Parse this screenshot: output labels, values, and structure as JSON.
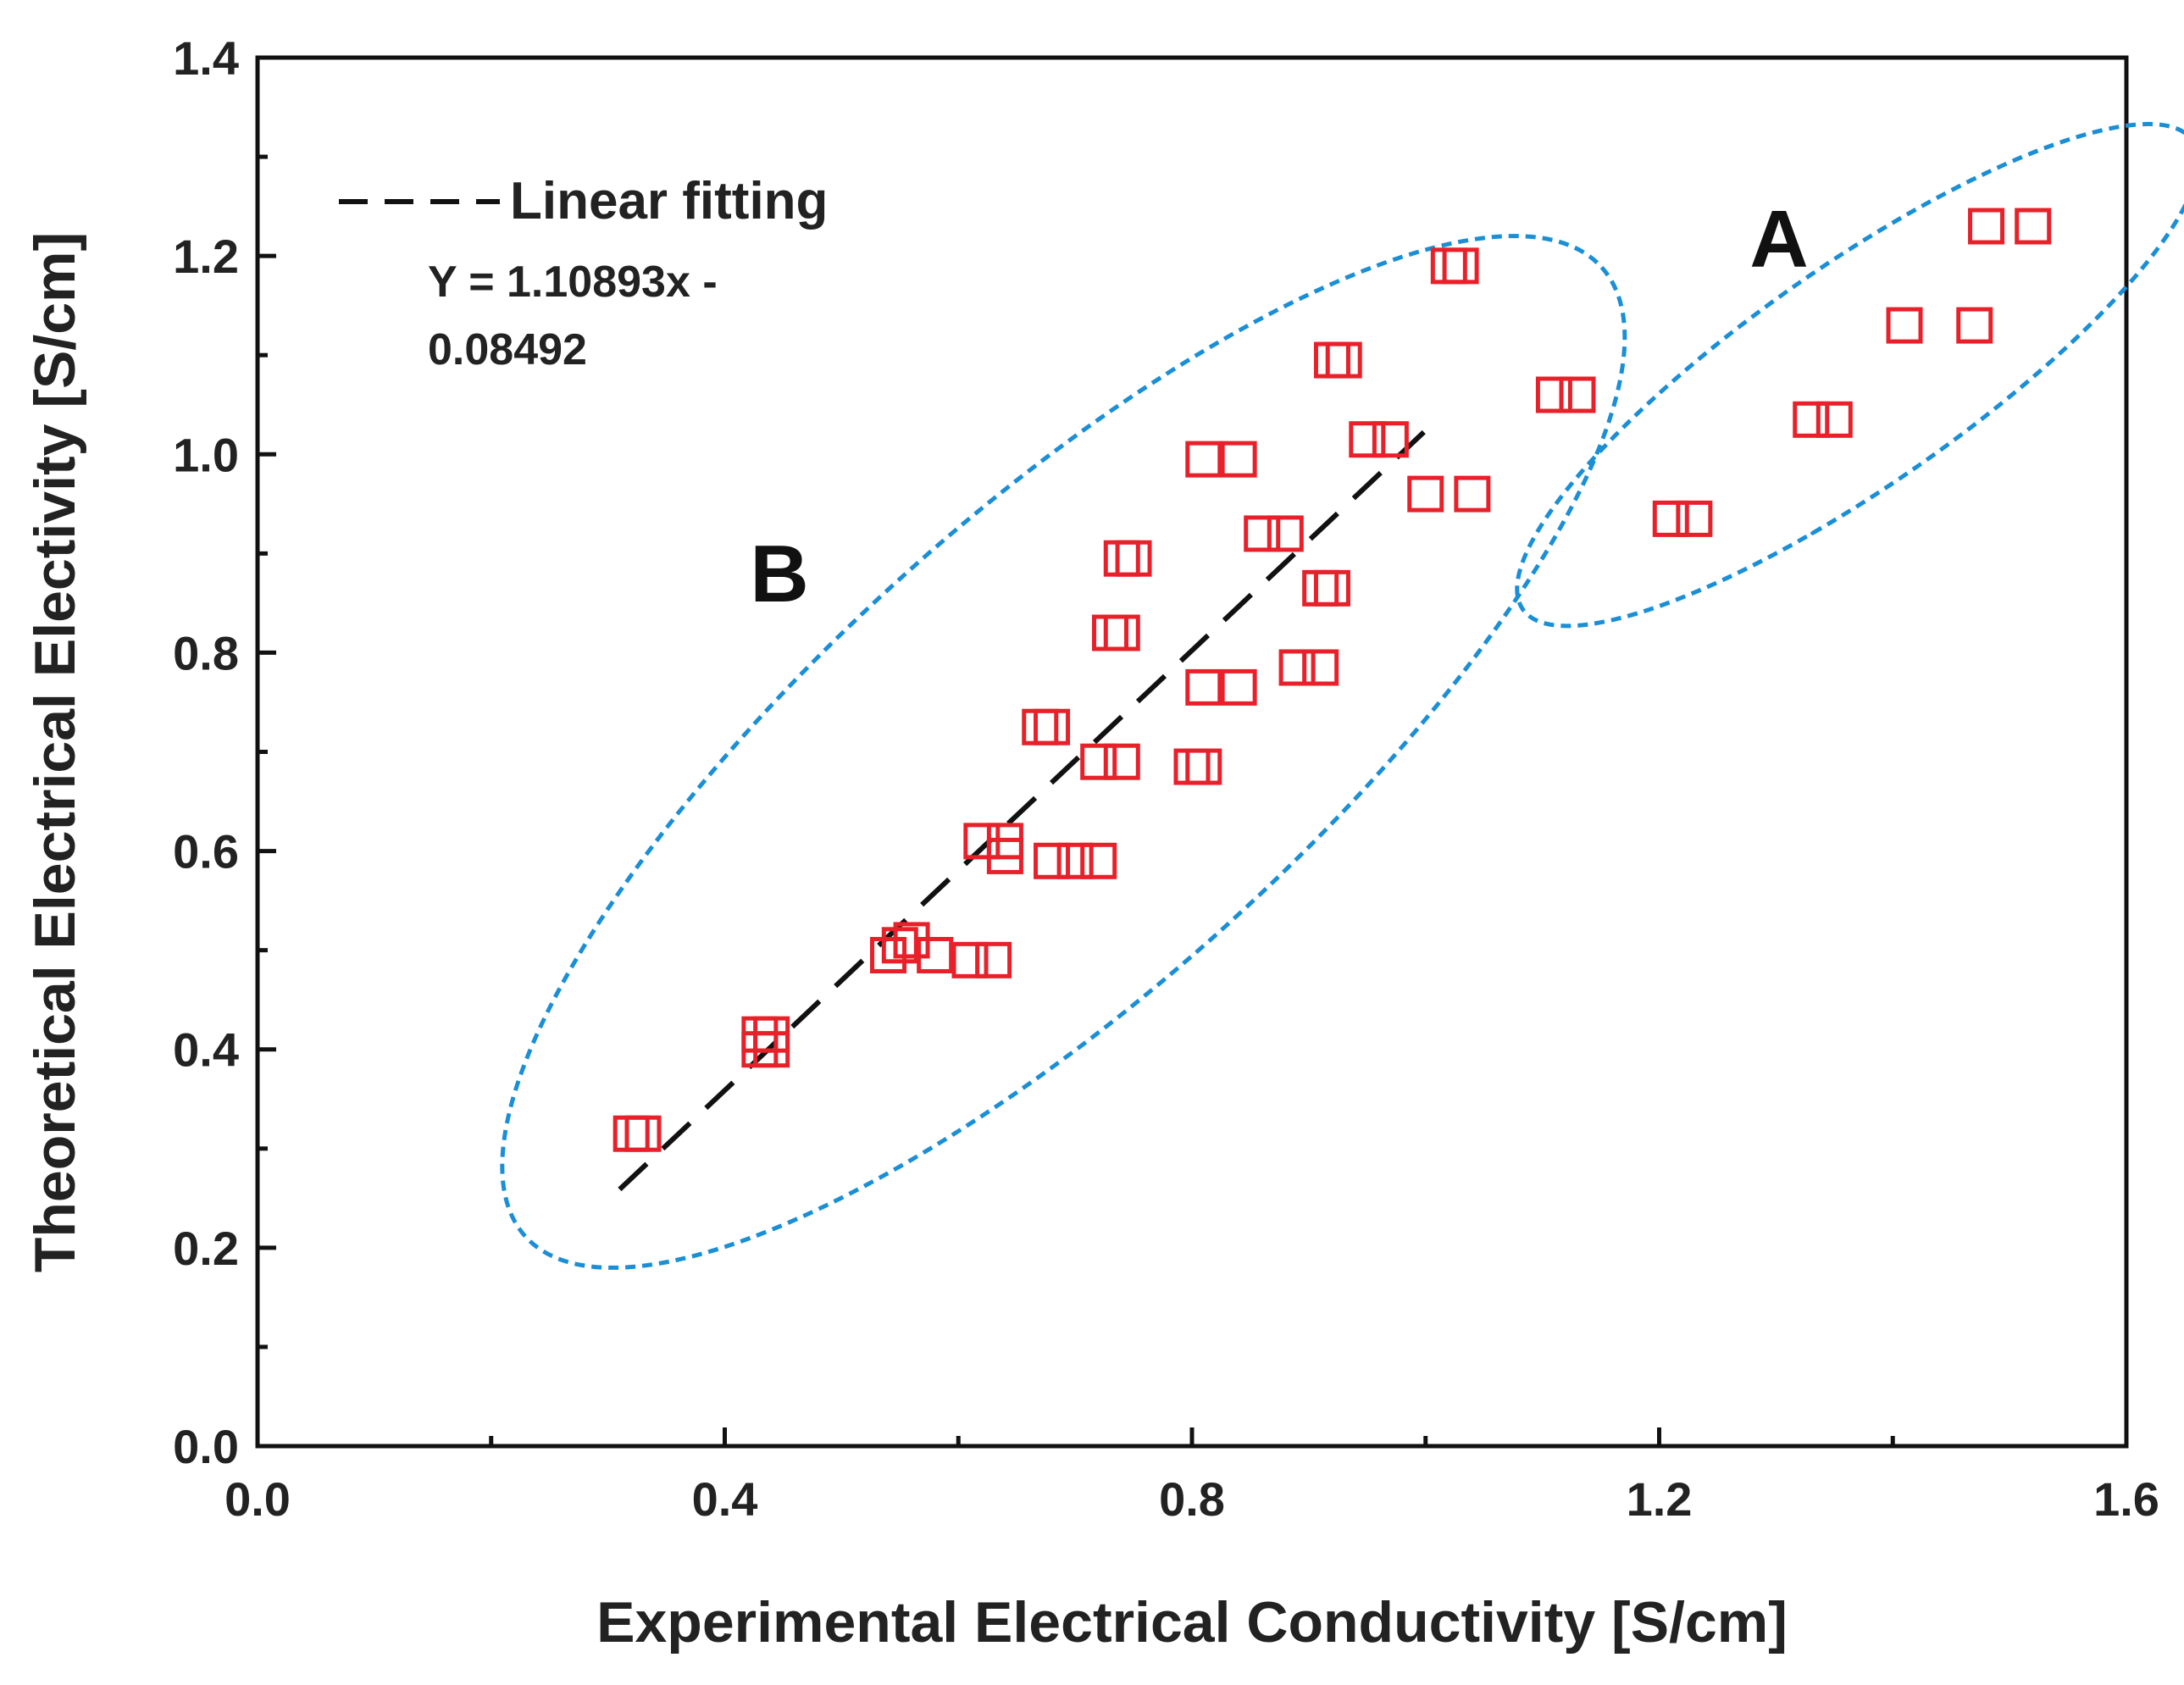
{
  "chart_data": {
    "type": "scatter",
    "title": "",
    "xlabel": "Experimental Electrical Conductivity [S/cm]",
    "ylabel": "Theoretical Electrical Electivity [S/cm]",
    "xlim": [
      0.0,
      1.6
    ],
    "ylim": [
      0.0,
      1.4
    ],
    "x_ticks": [
      "0.0",
      "0.4",
      "0.8",
      "1.2",
      "1.6"
    ],
    "y_ticks": [
      "0.0",
      "0.2",
      "0.4",
      "0.6",
      "0.8",
      "1.0",
      "1.2",
      "1.4"
    ],
    "x_tick_values": [
      0.0,
      0.4,
      0.8,
      1.2,
      1.6
    ],
    "y_tick_values": [
      0.0,
      0.2,
      0.4,
      0.6,
      0.8,
      1.0,
      1.2,
      1.4
    ],
    "grid": false,
    "legend": {
      "position": "top-left",
      "line_label": "Linear fitting",
      "equation_line1": "Y = 1.10893x -",
      "equation_line2": "0.08492"
    },
    "fit": {
      "slope": 1.10893,
      "intercept": -0.08492,
      "x_range": [
        0.31,
        1.0
      ]
    },
    "groups": [
      {
        "label": "A",
        "center": [
          1.37,
          1.08
        ],
        "semi_axes": [
          0.35,
          0.11
        ],
        "angle": 35
      },
      {
        "label": "B",
        "center": [
          0.69,
          0.7
        ],
        "semi_axes": [
          0.62,
          0.24
        ],
        "angle": 42
      }
    ],
    "series": [
      {
        "name": "data",
        "marker": "open-square",
        "color": "#e8202a",
        "x": [
          0.32,
          0.33,
          0.43,
          0.44,
          0.43,
          0.44,
          0.54,
          0.56,
          0.55,
          0.58,
          0.61,
          0.63,
          0.62,
          0.64,
          0.64,
          0.68,
          0.7,
          0.72,
          0.67,
          0.68,
          0.72,
          0.74,
          0.73,
          0.74,
          0.74,
          0.75,
          0.8,
          0.81,
          0.81,
          0.84,
          0.81,
          0.84,
          0.86,
          0.88,
          0.89,
          0.91,
          0.91,
          0.92,
          0.92,
          0.93,
          0.95,
          0.97,
          1.0,
          1.04,
          1.02,
          1.03,
          1.11,
          1.13,
          1.21,
          1.23,
          1.33,
          1.35,
          1.41,
          1.47,
          1.48,
          1.52
        ],
        "y": [
          0.315,
          0.315,
          0.415,
          0.415,
          0.4,
          0.4,
          0.495,
          0.51,
          0.505,
          0.495,
          0.49,
          0.49,
          0.61,
          0.61,
          0.595,
          0.59,
          0.59,
          0.59,
          0.725,
          0.725,
          0.69,
          0.69,
          0.82,
          0.82,
          0.895,
          0.895,
          0.685,
          0.685,
          0.765,
          0.765,
          0.995,
          0.995,
          0.92,
          0.92,
          0.785,
          0.785,
          0.865,
          0.865,
          1.095,
          1.095,
          1.015,
          1.015,
          0.96,
          0.96,
          1.19,
          1.19,
          1.06,
          1.06,
          0.935,
          0.935,
          1.035,
          1.035,
          1.13,
          1.13,
          1.23,
          1.23
        ]
      }
    ],
    "colors": {
      "marker": "#e8202a",
      "fit_line": "#111111",
      "ellipse": "#1a8fd6",
      "axis": "#111111",
      "text": "#222222"
    }
  }
}
